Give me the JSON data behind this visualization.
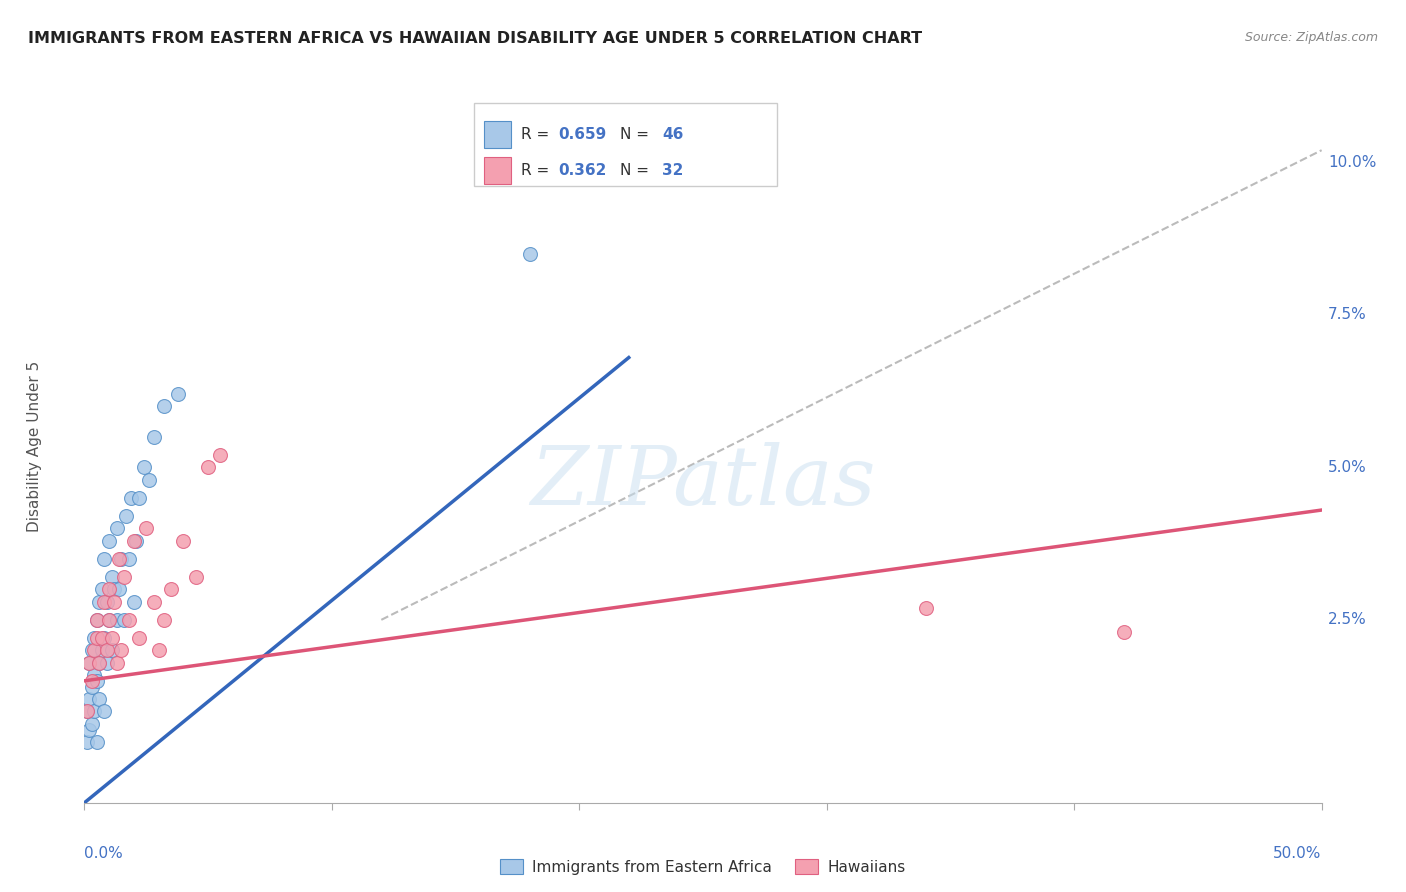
{
  "title": "IMMIGRANTS FROM EASTERN AFRICA VS HAWAIIAN DISABILITY AGE UNDER 5 CORRELATION CHART",
  "source": "Source: ZipAtlas.com",
  "ylabel": "Disability Age Under 5",
  "ylabel_ticks": [
    "10.0%",
    "7.5%",
    "5.0%",
    "2.5%"
  ],
  "ylabel_ticks_vals": [
    0.1,
    0.075,
    0.05,
    0.025
  ],
  "xmin": 0.0,
  "xmax": 0.5,
  "ymin": -0.005,
  "ymax": 0.112,
  "blue_R": "0.659",
  "blue_N": "46",
  "pink_R": "0.362",
  "pink_N": "32",
  "legend_label_blue": "Immigrants from Eastern Africa",
  "legend_label_pink": "Hawaiians",
  "blue_color": "#a8c8e8",
  "pink_color": "#f4a0b0",
  "blue_edge_color": "#5590c8",
  "pink_edge_color": "#e06080",
  "blue_line_color": "#3366bb",
  "pink_line_color": "#dd5577",
  "trendline_color": "#bbbbbb",
  "blue_scatter_x": [
    0.001,
    0.001,
    0.002,
    0.002,
    0.002,
    0.003,
    0.003,
    0.003,
    0.004,
    0.004,
    0.004,
    0.005,
    0.005,
    0.005,
    0.006,
    0.006,
    0.006,
    0.007,
    0.007,
    0.008,
    0.008,
    0.008,
    0.009,
    0.009,
    0.01,
    0.01,
    0.011,
    0.011,
    0.012,
    0.013,
    0.013,
    0.014,
    0.015,
    0.016,
    0.017,
    0.018,
    0.019,
    0.02,
    0.021,
    0.022,
    0.024,
    0.026,
    0.028,
    0.032,
    0.038,
    0.18
  ],
  "blue_scatter_y": [
    0.005,
    0.01,
    0.007,
    0.012,
    0.018,
    0.008,
    0.014,
    0.02,
    0.01,
    0.016,
    0.022,
    0.005,
    0.015,
    0.025,
    0.012,
    0.018,
    0.028,
    0.02,
    0.03,
    0.01,
    0.022,
    0.035,
    0.018,
    0.028,
    0.025,
    0.038,
    0.02,
    0.032,
    0.03,
    0.025,
    0.04,
    0.03,
    0.035,
    0.025,
    0.042,
    0.035,
    0.045,
    0.028,
    0.038,
    0.045,
    0.05,
    0.048,
    0.055,
    0.06,
    0.062,
    0.085
  ],
  "pink_scatter_x": [
    0.001,
    0.002,
    0.003,
    0.004,
    0.005,
    0.005,
    0.006,
    0.007,
    0.008,
    0.009,
    0.01,
    0.01,
    0.011,
    0.012,
    0.013,
    0.014,
    0.015,
    0.016,
    0.018,
    0.02,
    0.022,
    0.025,
    0.028,
    0.03,
    0.032,
    0.035,
    0.04,
    0.045,
    0.05,
    0.055,
    0.34,
    0.42
  ],
  "pink_scatter_y": [
    0.01,
    0.018,
    0.015,
    0.02,
    0.022,
    0.025,
    0.018,
    0.022,
    0.028,
    0.02,
    0.025,
    0.03,
    0.022,
    0.028,
    0.018,
    0.035,
    0.02,
    0.032,
    0.025,
    0.038,
    0.022,
    0.04,
    0.028,
    0.02,
    0.025,
    0.03,
    0.038,
    0.032,
    0.05,
    0.052,
    0.027,
    0.023
  ],
  "blue_trend_x": [
    0.0,
    0.22
  ],
  "blue_trend_y": [
    -0.005,
    0.068
  ],
  "pink_trend_x": [
    0.0,
    0.5
  ],
  "pink_trend_y": [
    0.015,
    0.043
  ],
  "diag_trend_x": [
    0.12,
    0.5
  ],
  "diag_trend_y": [
    0.025,
    0.102
  ],
  "watermark": "ZIPatlas",
  "background_color": "#ffffff",
  "grid_color": "#dddddd"
}
